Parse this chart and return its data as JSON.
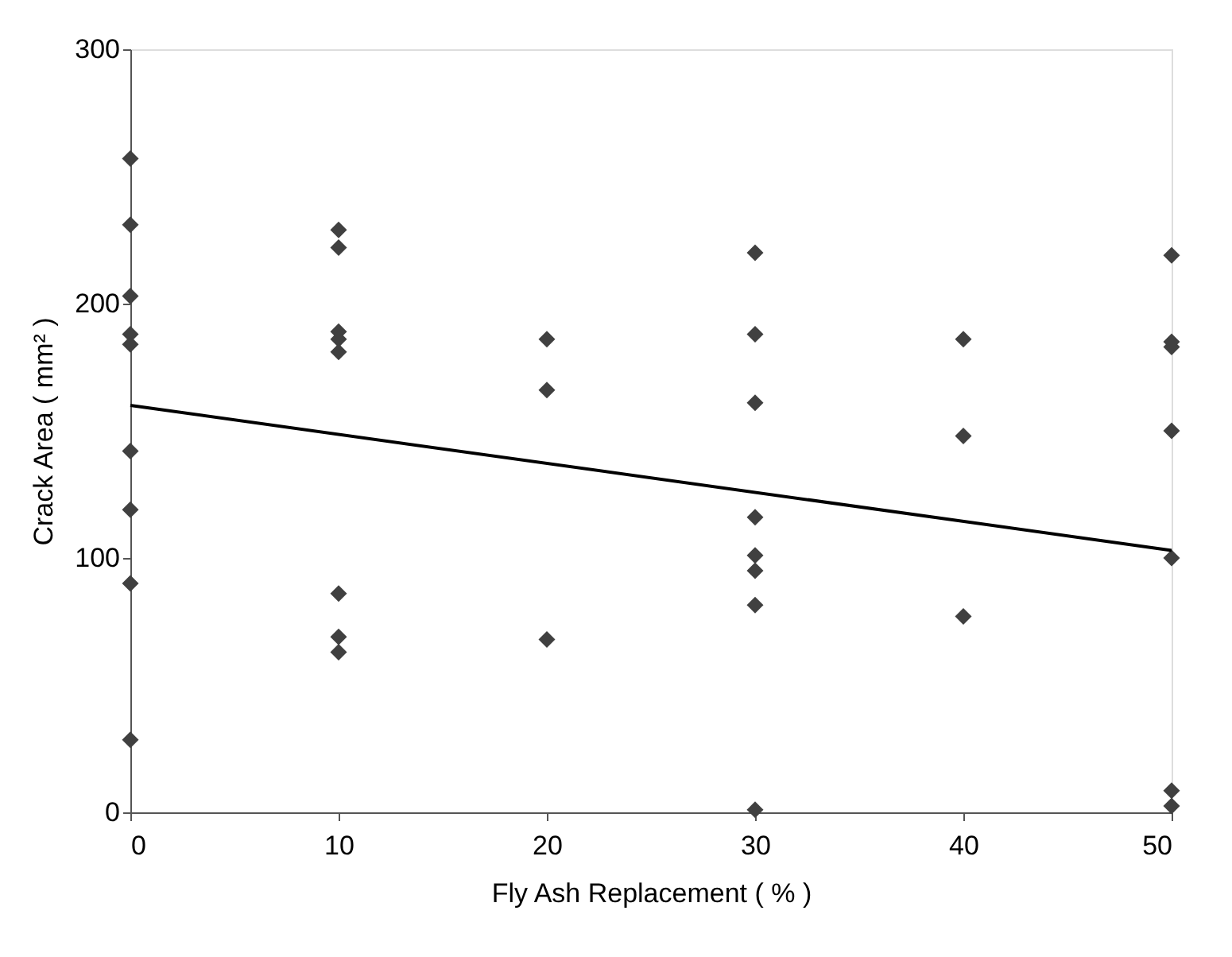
{
  "chart_data": {
    "type": "scatter",
    "xlabel": "Fly Ash Replacement ( % )",
    "ylabel": "Crack Area ( mm² )",
    "xlim": [
      0,
      50
    ],
    "xticks": [
      0,
      10,
      20,
      30,
      40,
      50
    ],
    "ylim": [
      0,
      300
    ],
    "yticks": [
      0,
      100,
      200,
      300
    ],
    "grid": false,
    "marker": "diamond",
    "series": [
      {
        "color": "#404040",
        "x": [
          0,
          0,
          0,
          0,
          0,
          0,
          0,
          0,
          0,
          10,
          10,
          10,
          10,
          10,
          10,
          10,
          10,
          20,
          20,
          20,
          30,
          30,
          30,
          30,
          30,
          30,
          30,
          30,
          40,
          40,
          40,
          50,
          50,
          50,
          50,
          50,
          50,
          50
        ],
        "values": [
          257,
          231,
          203,
          188,
          184,
          142,
          119,
          90,
          28.5,
          229,
          222,
          189,
          186,
          181,
          86,
          69,
          63,
          186,
          166,
          68,
          220,
          188,
          161,
          116,
          101,
          95,
          81.5,
          1,
          186,
          148,
          77,
          219,
          185,
          183,
          150,
          100,
          8.5,
          2.5
        ]
      },
      {
        "type": "line",
        "color": "#000000",
        "line_style": "solid",
        "marker": "none",
        "x": [
          0,
          50
        ],
        "values": [
          160,
          103
        ]
      }
    ]
  }
}
